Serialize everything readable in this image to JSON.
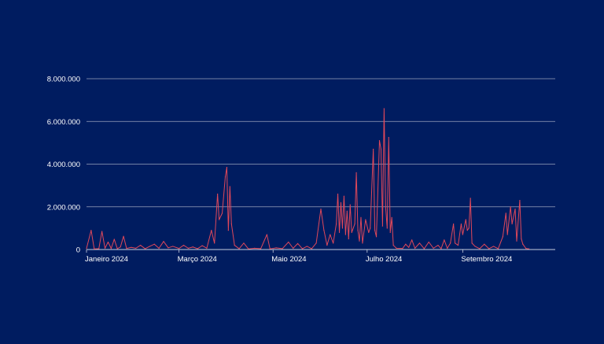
{
  "colors": {
    "background": "#001c60",
    "line": "#e0485a",
    "grid": "#9aa3bd",
    "axis": "#c8cede",
    "text": "#ffffff"
  },
  "chart_data": {
    "type": "line",
    "title": "",
    "xlabel": "",
    "ylabel": "",
    "ylim": [
      0,
      8000000
    ],
    "y_ticks": [
      {
        "value": 0,
        "label": "0"
      },
      {
        "value": 2000000,
        "label": "2.000.000"
      },
      {
        "value": 4000000,
        "label": "4.000.000"
      },
      {
        "value": 6000000,
        "label": "6.000.000"
      },
      {
        "value": 8000000,
        "label": "8.000.000"
      }
    ],
    "x_range": [
      "2024-01-01",
      "2024-10-31"
    ],
    "x_ticks": [
      {
        "date": "2024-01-01",
        "label": "Janeiro 2024"
      },
      {
        "date": "2024-03-01",
        "label": "Março 2024"
      },
      {
        "date": "2024-05-01",
        "label": "Maio 2024"
      },
      {
        "date": "2024-07-01",
        "label": "Julho 2024"
      },
      {
        "date": "2024-09-01",
        "label": "Setembro 2024"
      }
    ],
    "grid": true,
    "series": [
      {
        "color": "#e0485a",
        "points": [
          [
            "2024-01-01",
            50000
          ],
          [
            "2024-01-04",
            900000
          ],
          [
            "2024-01-06",
            30000
          ],
          [
            "2024-01-09",
            40000
          ],
          [
            "2024-01-11",
            850000
          ],
          [
            "2024-01-13",
            60000
          ],
          [
            "2024-01-15",
            350000
          ],
          [
            "2024-01-17",
            50000
          ],
          [
            "2024-01-19",
            480000
          ],
          [
            "2024-01-21",
            40000
          ],
          [
            "2024-01-23",
            120000
          ],
          [
            "2024-01-25",
            620000
          ],
          [
            "2024-01-27",
            50000
          ],
          [
            "2024-01-30",
            100000
          ],
          [
            "2024-02-02",
            60000
          ],
          [
            "2024-02-05",
            200000
          ],
          [
            "2024-02-08",
            40000
          ],
          [
            "2024-02-11",
            150000
          ],
          [
            "2024-02-14",
            250000
          ],
          [
            "2024-02-17",
            60000
          ],
          [
            "2024-02-20",
            380000
          ],
          [
            "2024-02-23",
            80000
          ],
          [
            "2024-02-26",
            150000
          ],
          [
            "2024-03-01",
            50000
          ],
          [
            "2024-03-04",
            200000
          ],
          [
            "2024-03-07",
            60000
          ],
          [
            "2024-03-10",
            120000
          ],
          [
            "2024-03-13",
            40000
          ],
          [
            "2024-03-16",
            180000
          ],
          [
            "2024-03-19",
            60000
          ],
          [
            "2024-03-22",
            900000
          ],
          [
            "2024-03-24",
            300000
          ],
          [
            "2024-03-26",
            2600000
          ],
          [
            "2024-03-27",
            1400000
          ],
          [
            "2024-03-29",
            1700000
          ],
          [
            "2024-03-31",
            3400000
          ],
          [
            "2024-04-01",
            3850000
          ],
          [
            "2024-04-02",
            900000
          ],
          [
            "2024-04-03",
            2950000
          ],
          [
            "2024-04-04",
            1200000
          ],
          [
            "2024-04-06",
            200000
          ],
          [
            "2024-04-09",
            40000
          ],
          [
            "2024-04-12",
            300000
          ],
          [
            "2024-04-15",
            30000
          ],
          [
            "2024-04-19",
            60000
          ],
          [
            "2024-04-23",
            40000
          ],
          [
            "2024-04-27",
            700000
          ],
          [
            "2024-04-29",
            30000
          ],
          [
            "2024-05-03",
            80000
          ],
          [
            "2024-05-07",
            40000
          ],
          [
            "2024-05-11",
            350000
          ],
          [
            "2024-05-14",
            60000
          ],
          [
            "2024-05-17",
            280000
          ],
          [
            "2024-05-20",
            40000
          ],
          [
            "2024-05-23",
            150000
          ],
          [
            "2024-05-26",
            40000
          ],
          [
            "2024-05-29",
            300000
          ],
          [
            "2024-06-01",
            1900000
          ],
          [
            "2024-06-03",
            900000
          ],
          [
            "2024-06-05",
            200000
          ],
          [
            "2024-06-07",
            700000
          ],
          [
            "2024-06-09",
            300000
          ],
          [
            "2024-06-11",
            1200000
          ],
          [
            "2024-06-12",
            2600000
          ],
          [
            "2024-06-13",
            800000
          ],
          [
            "2024-06-14",
            2200000
          ],
          [
            "2024-06-15",
            1000000
          ],
          [
            "2024-06-16",
            2500000
          ],
          [
            "2024-06-17",
            700000
          ],
          [
            "2024-06-18",
            1800000
          ],
          [
            "2024-06-19",
            500000
          ],
          [
            "2024-06-20",
            2100000
          ],
          [
            "2024-06-21",
            800000
          ],
          [
            "2024-06-23",
            1200000
          ],
          [
            "2024-06-24",
            3600000
          ],
          [
            "2024-06-25",
            900000
          ],
          [
            "2024-06-26",
            400000
          ],
          [
            "2024-06-27",
            1500000
          ],
          [
            "2024-06-28",
            300000
          ],
          [
            "2024-06-30",
            1400000
          ],
          [
            "2024-07-02",
            800000
          ],
          [
            "2024-07-03",
            1000000
          ],
          [
            "2024-07-05",
            4700000
          ],
          [
            "2024-07-06",
            900000
          ],
          [
            "2024-07-07",
            600000
          ],
          [
            "2024-07-09",
            5100000
          ],
          [
            "2024-07-10",
            4700000
          ],
          [
            "2024-07-11",
            1100000
          ],
          [
            "2024-07-12",
            6600000
          ],
          [
            "2024-07-13",
            2000000
          ],
          [
            "2024-07-14",
            1000000
          ],
          [
            "2024-07-15",
            5250000
          ],
          [
            "2024-07-16",
            800000
          ],
          [
            "2024-07-17",
            1500000
          ],
          [
            "2024-07-18",
            200000
          ],
          [
            "2024-07-20",
            60000
          ],
          [
            "2024-07-24",
            50000
          ],
          [
            "2024-07-26",
            250000
          ],
          [
            "2024-07-28",
            100000
          ],
          [
            "2024-07-30",
            450000
          ],
          [
            "2024-08-01",
            60000
          ],
          [
            "2024-08-04",
            300000
          ],
          [
            "2024-08-07",
            40000
          ],
          [
            "2024-08-10",
            350000
          ],
          [
            "2024-08-13",
            60000
          ],
          [
            "2024-08-16",
            200000
          ],
          [
            "2024-08-18",
            40000
          ],
          [
            "2024-08-20",
            450000
          ],
          [
            "2024-08-22",
            60000
          ],
          [
            "2024-08-24",
            300000
          ],
          [
            "2024-08-26",
            1200000
          ],
          [
            "2024-08-27",
            300000
          ],
          [
            "2024-08-29",
            200000
          ],
          [
            "2024-08-31",
            1200000
          ],
          [
            "2024-09-01",
            700000
          ],
          [
            "2024-09-03",
            1400000
          ],
          [
            "2024-09-04",
            900000
          ],
          [
            "2024-09-05",
            1000000
          ],
          [
            "2024-09-06",
            2400000
          ],
          [
            "2024-09-07",
            300000
          ],
          [
            "2024-09-09",
            150000
          ],
          [
            "2024-09-12",
            40000
          ],
          [
            "2024-09-15",
            250000
          ],
          [
            "2024-09-18",
            40000
          ],
          [
            "2024-09-21",
            150000
          ],
          [
            "2024-09-24",
            40000
          ],
          [
            "2024-09-27",
            600000
          ],
          [
            "2024-09-29",
            1700000
          ],
          [
            "2024-09-30",
            700000
          ],
          [
            "2024-10-02",
            2000000
          ],
          [
            "2024-10-03",
            1200000
          ],
          [
            "2024-10-05",
            1900000
          ],
          [
            "2024-10-06",
            400000
          ],
          [
            "2024-10-08",
            2300000
          ],
          [
            "2024-10-09",
            500000
          ],
          [
            "2024-10-10",
            250000
          ],
          [
            "2024-10-12",
            50000
          ],
          [
            "2024-10-14",
            30000
          ]
        ]
      }
    ]
  }
}
